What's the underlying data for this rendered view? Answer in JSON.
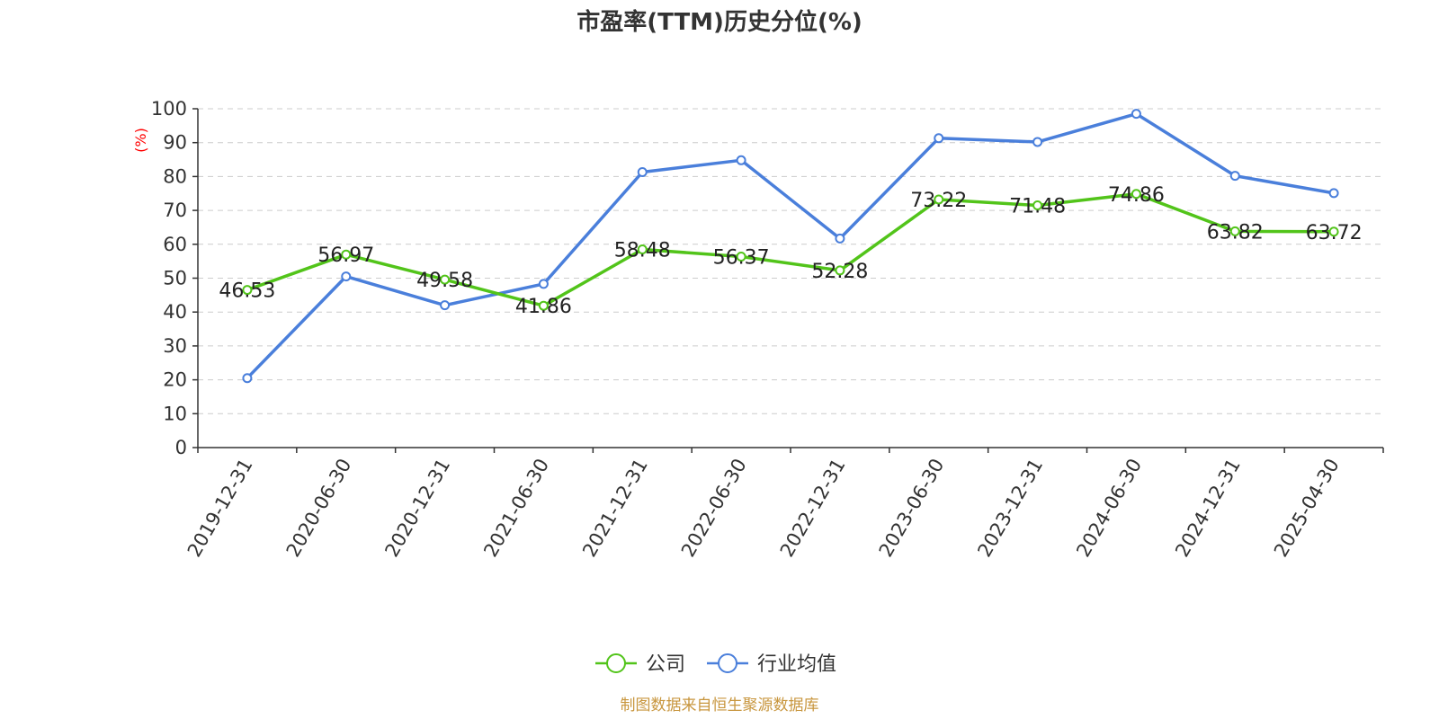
{
  "chart_data": {
    "type": "line",
    "title": "市盈率(TTM)历史分位(%)",
    "ylabel": "(%)",
    "ylim": [
      0,
      100
    ],
    "yticks": [
      0,
      10,
      20,
      30,
      40,
      50,
      60,
      70,
      80,
      90,
      100
    ],
    "grid": true,
    "legend_position": "bottom-center",
    "categories": [
      "2019-12-31",
      "2020-06-30",
      "2020-12-31",
      "2021-06-30",
      "2021-12-31",
      "2022-06-30",
      "2022-12-31",
      "2023-06-30",
      "2023-12-31",
      "2024-06-30",
      "2024-12-31",
      "2025-04-30"
    ],
    "series": [
      {
        "name": "公司",
        "color": "#52c41a",
        "values": [
          46.53,
          56.97,
          49.58,
          41.86,
          58.48,
          56.37,
          52.28,
          73.22,
          71.48,
          74.86,
          63.82,
          63.72
        ],
        "labels": [
          "46.53",
          "56.97",
          "49.58",
          "41.86",
          "58.48",
          "56.37",
          "52.28",
          "73.22",
          "71.48",
          "74.86",
          "63.82",
          "63.72"
        ]
      },
      {
        "name": "行业均值",
        "color": "#4a7fdb",
        "values": [
          20.5,
          50.5,
          42,
          48.3,
          81.3,
          84.8,
          61.7,
          91.3,
          90.2,
          98.5,
          80.2,
          75.1
        ]
      }
    ],
    "source": "制图数据来自恒生聚源数据库",
    "source_color": "#c8963e",
    "ylabel_color": "#ff0000"
  }
}
